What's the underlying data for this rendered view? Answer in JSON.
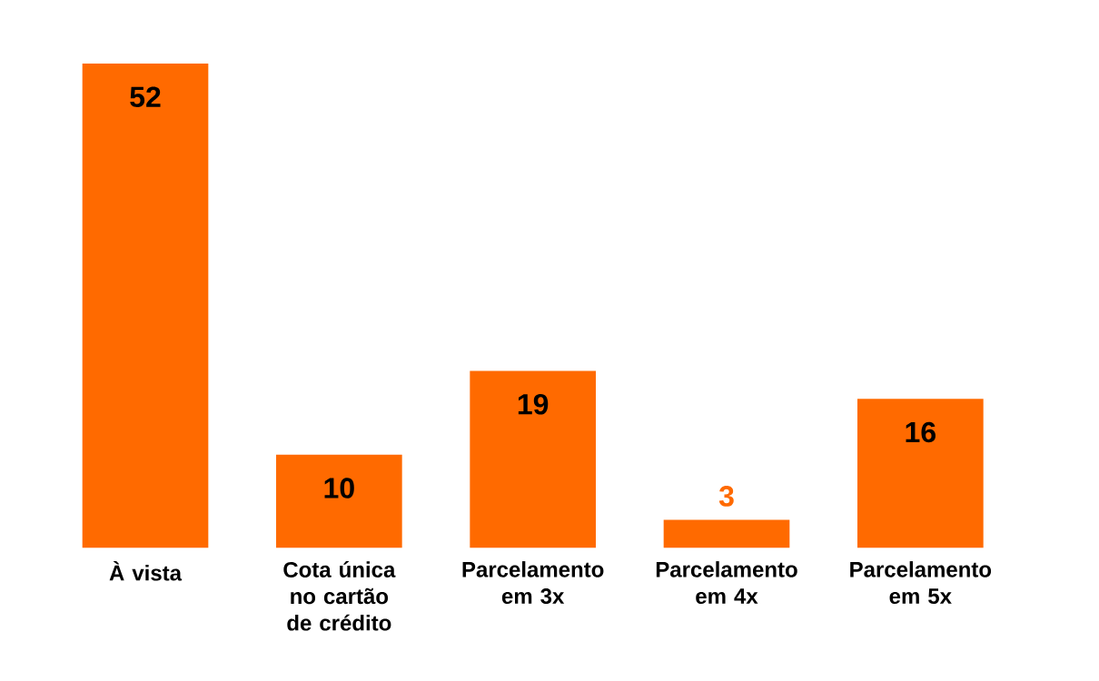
{
  "chart_data": {
    "type": "bar",
    "categories": [
      "À vista",
      "Cota única no cartão de crédito",
      "Parcelamento em 3x",
      "Parcelamento em 4x",
      "Parcelamento em 5x"
    ],
    "values": [
      52,
      10,
      19,
      3,
      16
    ],
    "color": "#ff6a00",
    "data_labels": true
  }
}
